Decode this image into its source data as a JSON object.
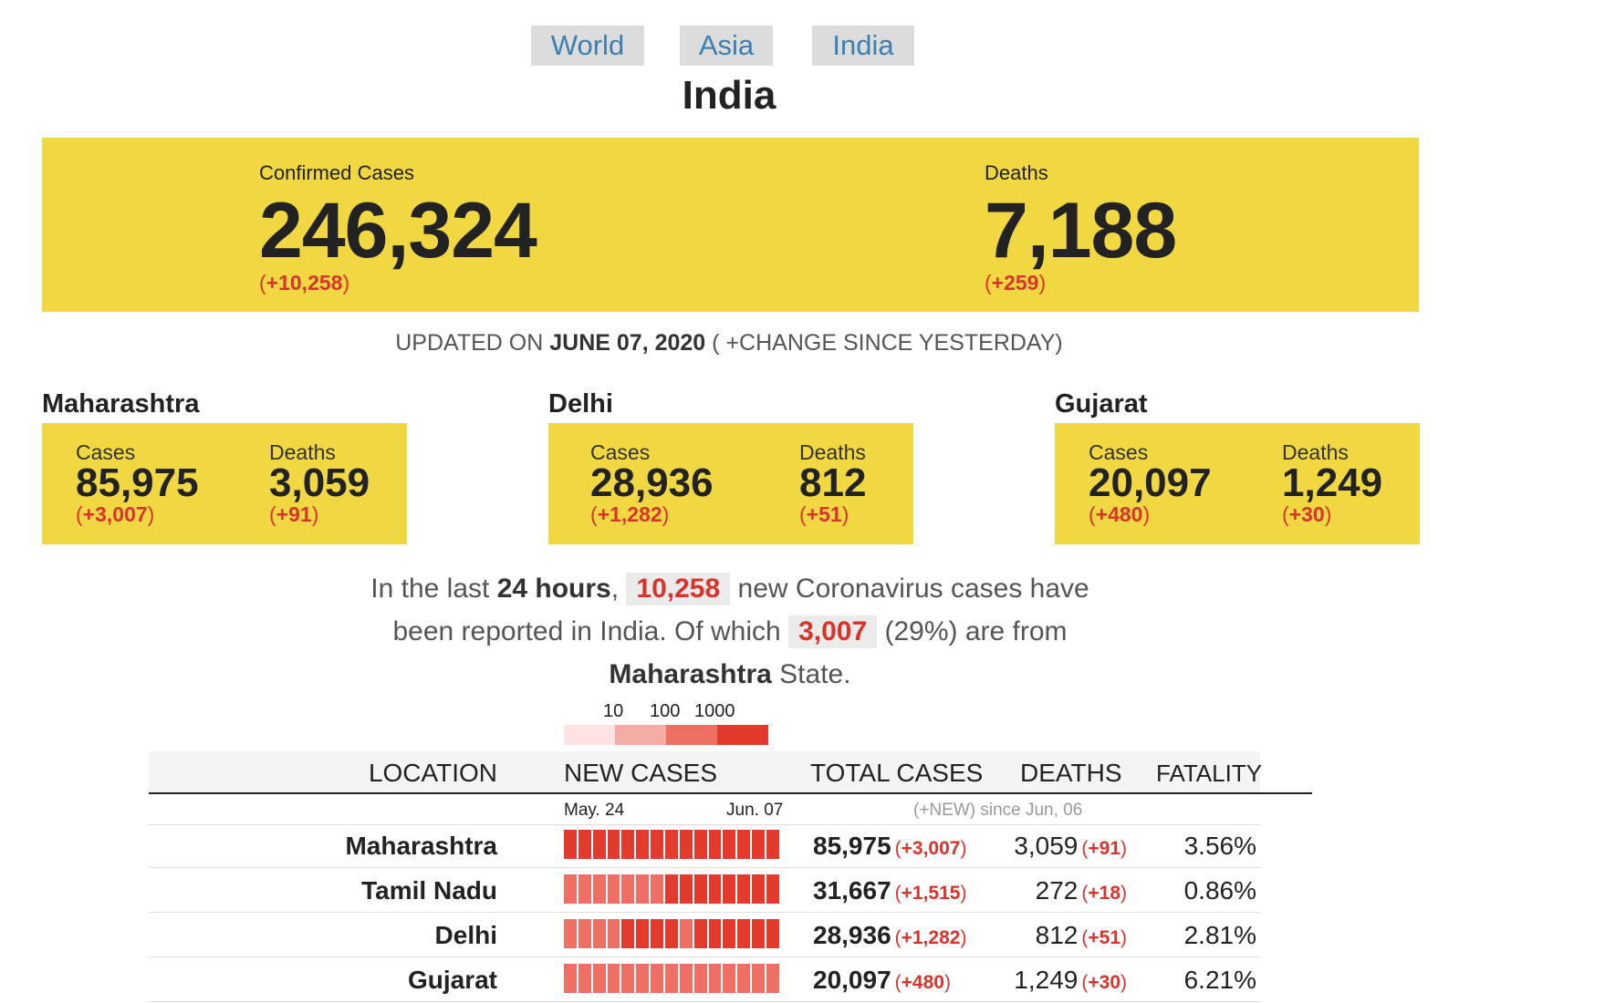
{
  "tabs": [
    "World",
    "Asia",
    "India"
  ],
  "page_title": "India",
  "hero": {
    "confirmed_label": "Confirmed Cases",
    "confirmed_value": "246,324",
    "confirmed_delta": "+10,258",
    "deaths_label": "Deaths",
    "deaths_value": "7,188",
    "deaths_delta": "+259"
  },
  "updated": {
    "prefix": "UPDATED ON",
    "date": "JUNE 07, 2020",
    "suffix": "( +CHANGE SINCE YESTERDAY)"
  },
  "states": [
    {
      "name": "Maharashtra",
      "cases_label": "Cases",
      "cases": "85,975",
      "cases_delta": "+3,007",
      "deaths_label": "Deaths",
      "deaths": "3,059",
      "deaths_delta": "+91"
    },
    {
      "name": "Delhi",
      "cases_label": "Cases",
      "cases": "28,936",
      "cases_delta": "+1,282",
      "deaths_label": "Deaths",
      "deaths": "812",
      "deaths_delta": "+51"
    },
    {
      "name": "Gujarat",
      "cases_label": "Cases",
      "cases": "20,097",
      "cases_delta": "+480",
      "deaths_label": "Deaths",
      "deaths": "1,249",
      "deaths_delta": "+30"
    }
  ],
  "summary": {
    "t1": "In the last",
    "hours": "24 hours",
    "t2": ",",
    "new_cases": "10,258",
    "t3": "new Coronavirus cases have been reported in India. Of which",
    "state_cases": "3,007",
    "t4": "(29%) are from",
    "state": "Maharashtra",
    "t5": "State."
  },
  "legend": {
    "labels": [
      "10",
      "100",
      "1000"
    ],
    "colors": [
      "#fde3e1",
      "#f5aca5",
      "#ee7064",
      "#e23b2d"
    ]
  },
  "table": {
    "headers": {
      "location": "LOCATION",
      "new_cases": "NEW CASES",
      "total_cases": "TOTAL CASES",
      "deaths": "DEATHS",
      "fatality": "FATALITY"
    },
    "date_start": "May. 24",
    "date_end": "Jun. 07",
    "since_note": "(+NEW) since Jun, 06",
    "rows": [
      {
        "location": "Maharashtra",
        "total": "85,975",
        "total_delta": "+3,007",
        "deaths": "3,059",
        "deaths_delta": "+91",
        "fatality": "3.56%",
        "spark_levels": [
          3,
          3,
          3,
          3,
          3,
          3,
          3,
          3,
          3,
          3,
          3,
          3,
          3,
          3,
          3
        ]
      },
      {
        "location": "Tamil Nadu",
        "total": "31,667",
        "total_delta": "+1,515",
        "deaths": "272",
        "deaths_delta": "+18",
        "fatality": "0.86%",
        "spark_levels": [
          2,
          2,
          2,
          2,
          2,
          2,
          2,
          3,
          3,
          3,
          3,
          3,
          3,
          3,
          3
        ]
      },
      {
        "location": "Delhi",
        "total": "28,936",
        "total_delta": "+1,282",
        "deaths": "812",
        "deaths_delta": "+51",
        "fatality": "2.81%",
        "spark_levels": [
          2,
          2,
          2,
          2,
          3,
          3,
          3,
          3,
          2,
          3,
          3,
          3,
          3,
          3,
          3
        ]
      },
      {
        "location": "Gujarat",
        "total": "20,097",
        "total_delta": "+480",
        "deaths": "1,249",
        "deaths_delta": "+30",
        "fatality": "6.21%",
        "spark_levels": [
          2,
          2,
          2,
          2,
          2,
          2,
          2,
          2,
          2,
          2,
          2,
          2,
          2,
          2,
          2
        ]
      }
    ],
    "partial_row_levels": [
      2,
      2,
      2,
      2,
      2,
      2,
      2,
      2,
      2,
      2,
      2,
      2,
      2,
      2,
      2
    ]
  }
}
